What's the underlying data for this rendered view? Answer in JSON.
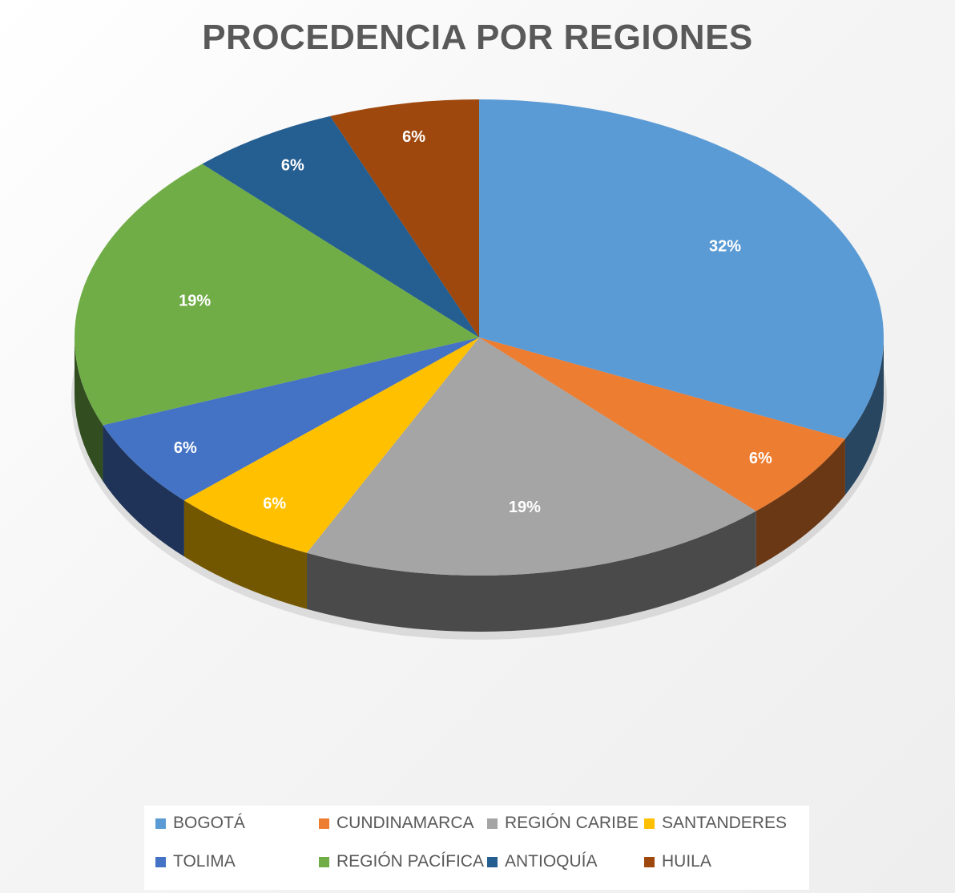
{
  "chart_data": {
    "type": "pie",
    "title": "PROCEDENCIA POR REGIONES",
    "categories": [
      "BOGOTÁ",
      "CUNDINAMARCA",
      "REGIÓN CARIBE",
      "SANTANDERES",
      "TOLIMA",
      "REGIÓN PACÍFICA",
      "ANTIOQUÍA",
      "HUILA"
    ],
    "values": [
      32,
      6,
      19,
      6,
      6,
      19,
      6,
      6
    ],
    "data_labels": [
      "32%",
      "6%",
      "19%",
      "6%",
      "6%",
      "19%",
      "6%",
      "6%"
    ],
    "colors": [
      "#5b9bd5",
      "#ed7d31",
      "#a5a5a5",
      "#ffc000",
      "#4472c4",
      "#70ad47",
      "#255e91",
      "#9e480e"
    ],
    "style": "3d",
    "legend_position": "bottom"
  }
}
